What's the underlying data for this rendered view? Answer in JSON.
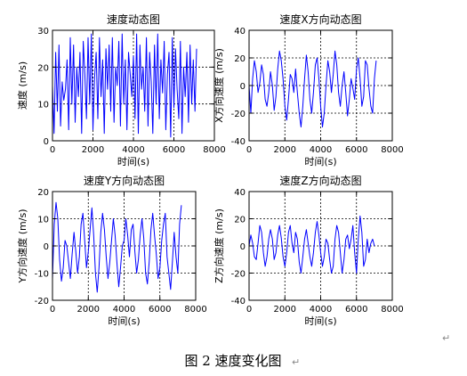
{
  "caption": "图 2  速度变化图",
  "chart_data": [
    {
      "type": "line",
      "title": "速度动态图",
      "xlabel": "时间(s)",
      "ylabel": "速度 (m/s)",
      "xlim": [
        0,
        8000
      ],
      "ylim": [
        0,
        30
      ],
      "xticks": [
        "0",
        "2000",
        "4000",
        "6000",
        "8000"
      ],
      "yticks": [
        "0",
        "10",
        "20",
        "30"
      ],
      "grid": "dotted",
      "line_color": "#0000ff",
      "series": [
        {
          "x": [
            0,
            80,
            160,
            240,
            320,
            400,
            480,
            560,
            640,
            720,
            800,
            880,
            960,
            1040,
            1120,
            1200,
            1280,
            1360,
            1440,
            1520,
            1600,
            1680,
            1760,
            1840,
            1920,
            2000,
            2080,
            2160,
            2240,
            2320,
            2400,
            2480,
            2560,
            2640,
            2720,
            2800,
            2880,
            2960,
            3040,
            3120,
            3200,
            3280,
            3360,
            3440,
            3520,
            3600,
            3680,
            3760,
            3840,
            3920,
            4000,
            4080,
            4160,
            4240,
            4320,
            4400,
            4480,
            4560,
            4640,
            4720,
            4800,
            4880,
            4960,
            5040,
            5120,
            5200,
            5280,
            5360,
            5440,
            5520,
            5600,
            5680,
            5760,
            5840,
            5920,
            6000,
            6080,
            6160,
            6240,
            6320,
            6400,
            6480,
            6560,
            6640,
            6720,
            6800,
            6880,
            6960,
            7040,
            7120
          ],
          "y": [
            15,
            2,
            24,
            8,
            26,
            4,
            16,
            11,
            14,
            22,
            3,
            28,
            10,
            26,
            5,
            20,
            12,
            24,
            2,
            27,
            18,
            6,
            28,
            10,
            29,
            3,
            17,
            24,
            6,
            28,
            12,
            22,
            2,
            25,
            14,
            26,
            8,
            28,
            5,
            20,
            15,
            27,
            4,
            29,
            10,
            22,
            3,
            24,
            18,
            12,
            23,
            6,
            29,
            2,
            26,
            14,
            20,
            8,
            28,
            4,
            24,
            16,
            2,
            26,
            10,
            29,
            6,
            22,
            13,
            27,
            3,
            18,
            24,
            1,
            28,
            9,
            25,
            14,
            6,
            27,
            2,
            20,
            12,
            24,
            5,
            26,
            10,
            22,
            8,
            25
          ]
        }
      ]
    },
    {
      "type": "line",
      "title": "速度X方向动态图",
      "xlabel": "时间(s)",
      "ylabel": "X方向速度 (m/s)",
      "xlim": [
        0,
        8000
      ],
      "ylim": [
        -40,
        40
      ],
      "xticks": [
        "0",
        "2000",
        "4000",
        "6000",
        "8000"
      ],
      "yticks": [
        "-40",
        "-20",
        "0",
        "20",
        "40"
      ],
      "grid": "dotted",
      "line_color": "#0000ff",
      "series": [
        {
          "x": [
            0,
            100,
            200,
            300,
            400,
            500,
            600,
            700,
            800,
            900,
            1000,
            1100,
            1200,
            1300,
            1400,
            1500,
            1600,
            1700,
            1800,
            1900,
            2000,
            2100,
            2200,
            2300,
            2400,
            2500,
            2600,
            2700,
            2800,
            2900,
            3000,
            3100,
            3200,
            3300,
            3400,
            3500,
            3600,
            3700,
            3800,
            3900,
            4000,
            4100,
            4200,
            4300,
            4400,
            4500,
            4600,
            4700,
            4800,
            4900,
            5000,
            5100,
            5200,
            5300,
            5400,
            5500,
            5600,
            5700,
            5800,
            5900,
            6000,
            6100,
            6200,
            6300,
            6400,
            6500,
            6600,
            6700,
            6800,
            6900,
            7000,
            7100
          ],
          "y": [
            0,
            -20,
            5,
            18,
            10,
            -5,
            2,
            15,
            8,
            -10,
            -15,
            -5,
            10,
            0,
            -18,
            -8,
            12,
            25,
            18,
            5,
            -15,
            -25,
            -10,
            8,
            5,
            -5,
            12,
            -5,
            -20,
            -30,
            -15,
            5,
            22,
            10,
            -10,
            -20,
            -5,
            15,
            20,
            5,
            -15,
            -30,
            -20,
            0,
            18,
            10,
            -5,
            8,
            25,
            15,
            -5,
            -15,
            0,
            10,
            -5,
            -22,
            -10,
            5,
            -2,
            -10,
            12,
            20,
            5,
            -15,
            -8,
            18,
            15,
            -2,
            -15,
            -20,
            5,
            18
          ]
        }
      ]
    },
    {
      "type": "line",
      "title": "速度Y方向动态图",
      "xlabel": "时间(s)",
      "ylabel": "Y方向速度 (m/s)",
      "xlim": [
        0,
        8000
      ],
      "ylim": [
        -20,
        20
      ],
      "xticks": [
        "0",
        "2000",
        "4000",
        "6000",
        "8000"
      ],
      "yticks": [
        "-20",
        "-10",
        "0",
        "10",
        "20"
      ],
      "grid": "dotted",
      "line_color": "#0000ff",
      "series": [
        {
          "x": [
            0,
            100,
            200,
            300,
            400,
            500,
            600,
            700,
            800,
            900,
            1000,
            1100,
            1200,
            1300,
            1400,
            1500,
            1600,
            1700,
            1800,
            1900,
            2000,
            2100,
            2200,
            2300,
            2400,
            2500,
            2600,
            2700,
            2800,
            2900,
            3000,
            3100,
            3200,
            3300,
            3400,
            3500,
            3600,
            3700,
            3800,
            3900,
            4000,
            4100,
            4200,
            4300,
            4400,
            4500,
            4600,
            4700,
            4800,
            4900,
            5000,
            5100,
            5200,
            5300,
            5400,
            5500,
            5600,
            5700,
            5800,
            5900,
            6000,
            6100,
            6200,
            6300,
            6400,
            6500,
            6600,
            6700,
            6800,
            6900,
            7000,
            7100,
            7200
          ],
          "y": [
            -12,
            8,
            16,
            10,
            -5,
            -13,
            -8,
            2,
            0,
            -6,
            -12,
            -3,
            5,
            -2,
            -10,
            -4,
            8,
            12,
            2,
            -8,
            -2,
            6,
            14,
            4,
            -10,
            -17,
            -8,
            5,
            12,
            6,
            -4,
            -12,
            -6,
            2,
            10,
            4,
            -6,
            -15,
            -8,
            0,
            2,
            10,
            4,
            -4,
            6,
            8,
            -2,
            -10,
            -5,
            4,
            10,
            3,
            -10,
            -14,
            -6,
            6,
            12,
            4,
            -3,
            -12,
            -8,
            2,
            8,
            12,
            -4,
            -10,
            -16,
            -6,
            5,
            -4,
            -10,
            8,
            15
          ]
        }
      ]
    },
    {
      "type": "line",
      "title": "速度Z方向动态图",
      "xlabel": "时间(s)",
      "ylabel": "Z方向速度 (m/s)",
      "xlim": [
        0,
        8000
      ],
      "ylim": [
        -40,
        40
      ],
      "xticks": [
        "0",
        "2000",
        "4000",
        "6000",
        "8000"
      ],
      "yticks": [
        "-40",
        "-20",
        "0",
        "20",
        "40"
      ],
      "grid": "dotted",
      "line_color": "#0000ff",
      "series": [
        {
          "x": [
            0,
            100,
            200,
            300,
            400,
            500,
            600,
            700,
            800,
            900,
            1000,
            1100,
            1200,
            1300,
            1400,
            1500,
            1600,
            1700,
            1800,
            1900,
            2000,
            2100,
            2200,
            2300,
            2400,
            2500,
            2600,
            2700,
            2800,
            2900,
            3000,
            3100,
            3200,
            3300,
            3400,
            3500,
            3600,
            3700,
            3800,
            3900,
            4000,
            4100,
            4200,
            4300,
            4400,
            4500,
            4600,
            4700,
            4800,
            4900,
            5000,
            5100,
            5200,
            5300,
            5400,
            5500,
            5600,
            5700,
            5800,
            5900,
            6000,
            6100,
            6200,
            6300,
            6400,
            6500,
            6600,
            6700,
            6800,
            6900,
            7000
          ],
          "y": [
            0,
            8,
            2,
            -8,
            -10,
            2,
            15,
            10,
            -5,
            -15,
            -8,
            5,
            12,
            5,
            -10,
            -5,
            8,
            15,
            6,
            -8,
            -15,
            -5,
            10,
            15,
            2,
            -5,
            10,
            5,
            -12,
            -20,
            -8,
            5,
            12,
            2,
            -8,
            -15,
            -5,
            10,
            18,
            8,
            -5,
            -15,
            -8,
            5,
            2,
            -10,
            -20,
            -15,
            5,
            15,
            10,
            -5,
            -20,
            -10,
            5,
            8,
            -2,
            5,
            15,
            -5,
            -20,
            5,
            22,
            10,
            -15,
            -10,
            5,
            -5,
            2,
            5,
            0
          ]
        }
      ]
    }
  ]
}
